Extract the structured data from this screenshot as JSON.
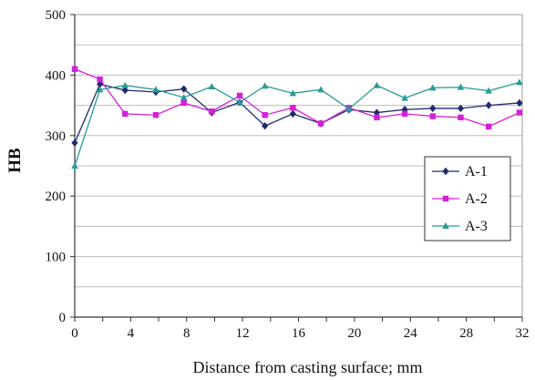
{
  "chart_data": {
    "type": "line",
    "xlabel": "Distance from casting surface; mm",
    "ylabel": "HB",
    "xlim": [
      0,
      32
    ],
    "ylim": [
      0,
      500
    ],
    "xticks": [
      0,
      4,
      8,
      12,
      16,
      20,
      24,
      28,
      32
    ],
    "yticks": [
      0,
      100,
      200,
      300,
      400,
      500
    ],
    "grid": "horizontal",
    "legend_position": "right",
    "series": [
      {
        "name": "A-1",
        "color": "#1f2a6e",
        "marker": "diamond",
        "x": [
          0,
          1.8,
          3.6,
          5.8,
          7.8,
          9.8,
          11.8,
          13.6,
          15.6,
          17.6,
          19.6,
          21.6,
          23.6,
          25.6,
          27.6,
          29.6,
          31.8
        ],
        "y": [
          288,
          385,
          375,
          372,
          377,
          338,
          355,
          316,
          336,
          320,
          343,
          338,
          343,
          345,
          345,
          350,
          354
        ]
      },
      {
        "name": "A-2",
        "color": "#d61fd6",
        "marker": "square",
        "x": [
          0,
          1.8,
          3.6,
          5.8,
          7.8,
          9.8,
          11.8,
          13.6,
          15.6,
          17.6,
          19.6,
          21.6,
          23.6,
          25.6,
          27.6,
          29.6,
          31.8
        ],
        "y": [
          410,
          393,
          336,
          334,
          354,
          340,
          366,
          334,
          346,
          320,
          346,
          330,
          336,
          332,
          330,
          315,
          338
        ]
      },
      {
        "name": "A-3",
        "color": "#2a9a98",
        "marker": "triangle",
        "x": [
          0,
          1.8,
          3.6,
          5.8,
          7.8,
          9.8,
          11.8,
          13.6,
          15.6,
          17.6,
          19.6,
          21.6,
          23.6,
          25.6,
          27.6,
          29.6,
          31.8
        ],
        "y": [
          250,
          376,
          383,
          376,
          363,
          381,
          355,
          382,
          370,
          376,
          344,
          383,
          362,
          379,
          380,
          374,
          388
        ]
      }
    ]
  }
}
